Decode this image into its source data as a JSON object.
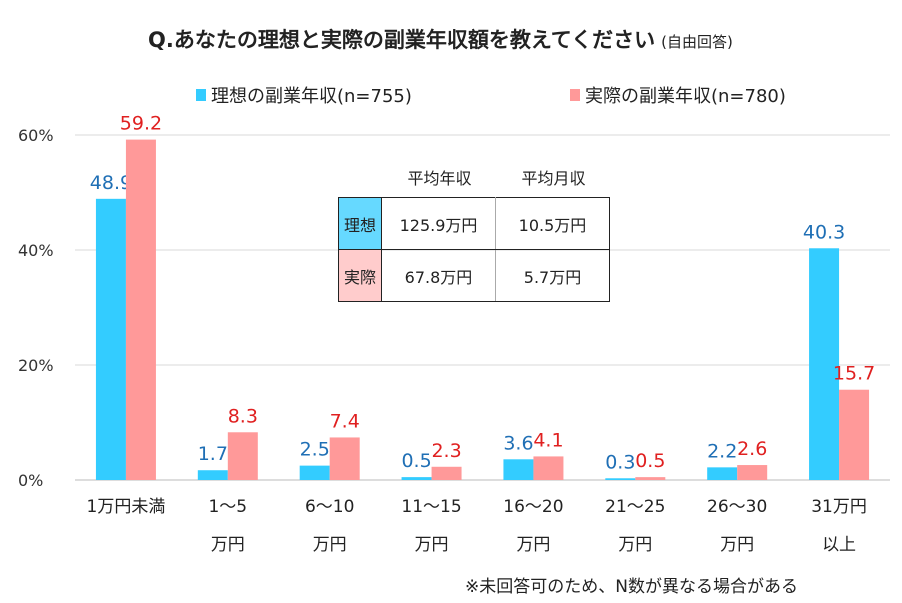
{
  "title": "Q.あなたの理想と実際の副業年収額を教えてください",
  "title_note": "(自由回答)",
  "note": "※未回答可のため、N数が異なる場合がある",
  "colors": {
    "ideal": "#33CCFF",
    "actual": "#FF9999",
    "ideal_label": "#1F6FB5",
    "actual_label": "#E02020"
  },
  "table": {
    "headers": [
      "平均年収",
      "平均月収"
    ],
    "rows": [
      {
        "label": "理想",
        "values": [
          "125.9万円",
          "10.5万円"
        ],
        "color": "#66D9FF"
      },
      {
        "label": "実際",
        "values": [
          "67.8万円",
          "5.7万円"
        ],
        "color": "#FFCCCC"
      }
    ]
  },
  "chart_data": {
    "type": "bar",
    "categories": [
      [
        "1万円未満",
        ""
      ],
      [
        "1～5",
        "万円"
      ],
      [
        "6～10",
        "万円"
      ],
      [
        "11～15",
        "万円"
      ],
      [
        "16～20",
        "万円"
      ],
      [
        "21～25",
        "万円"
      ],
      [
        "26～30",
        "万円"
      ],
      [
        "31万円",
        "以上"
      ]
    ],
    "series": [
      {
        "name": "理想の副業年収(n=755)",
        "values": [
          48.9,
          1.7,
          2.5,
          0.5,
          3.6,
          0.3,
          2.2,
          40.3
        ]
      },
      {
        "name": "実際の副業年収(n=780)",
        "values": [
          59.2,
          8.3,
          7.4,
          2.3,
          4.1,
          0.5,
          2.6,
          15.7
        ]
      }
    ],
    "ylim": [
      0,
      60
    ],
    "yticks": [
      "0%",
      "20%",
      "40%",
      "60%"
    ],
    "grid": true,
    "legend": "top"
  }
}
